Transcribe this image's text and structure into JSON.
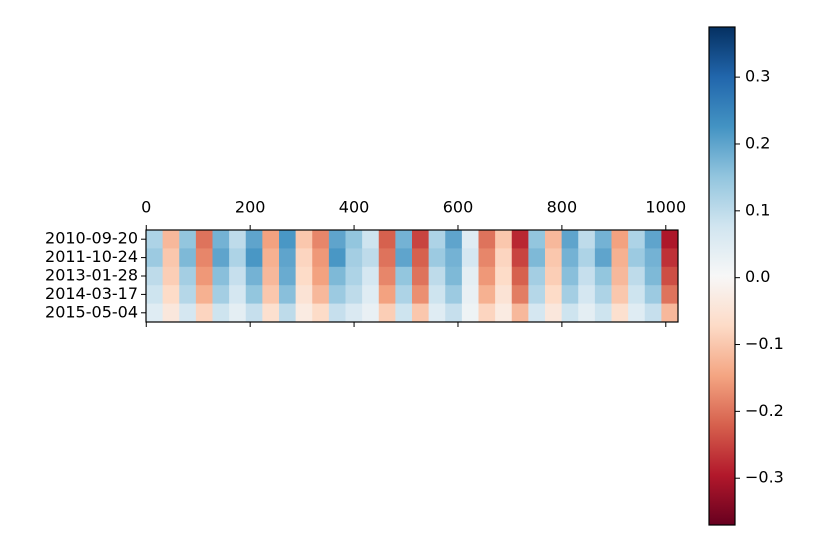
{
  "chart_data": {
    "type": "heatmap",
    "rows": [
      "2010-09-20",
      "2011-10-24",
      "2013-01-28",
      "2014-03-17",
      "2015-05-04"
    ],
    "values": [
      [
        0.12,
        -0.12,
        0.15,
        -0.2,
        0.18,
        0.1,
        0.2,
        -0.15,
        0.22,
        -0.1,
        -0.18,
        0.2,
        0.15,
        0.08,
        -0.22,
        0.18,
        -0.25,
        0.12,
        0.2,
        0.05,
        -0.2,
        -0.1,
        -0.28,
        0.15,
        -0.12,
        0.2,
        0.1,
        0.18,
        -0.15,
        0.12,
        0.2,
        -0.3
      ],
      [
        0.14,
        -0.1,
        0.17,
        -0.18,
        0.2,
        0.12,
        0.22,
        -0.13,
        0.2,
        -0.08,
        -0.16,
        0.22,
        0.13,
        0.1,
        -0.2,
        0.2,
        -0.22,
        0.14,
        0.18,
        0.07,
        -0.18,
        -0.08,
        -0.25,
        0.17,
        -0.1,
        0.18,
        0.12,
        0.2,
        -0.13,
        0.14,
        0.18,
        -0.27
      ],
      [
        0.1,
        -0.09,
        0.13,
        -0.16,
        0.16,
        0.09,
        0.18,
        -0.12,
        0.19,
        -0.07,
        -0.15,
        0.17,
        0.12,
        0.07,
        -0.18,
        0.15,
        -0.2,
        0.1,
        0.17,
        0.04,
        -0.16,
        -0.07,
        -0.22,
        0.13,
        -0.09,
        0.16,
        0.09,
        0.15,
        -0.12,
        0.1,
        0.17,
        -0.24
      ],
      [
        0.08,
        -0.07,
        0.11,
        -0.13,
        0.13,
        0.07,
        0.15,
        -0.1,
        0.16,
        -0.05,
        -0.12,
        0.14,
        0.1,
        0.05,
        -0.15,
        0.12,
        -0.17,
        0.08,
        0.14,
        0.03,
        -0.13,
        -0.05,
        -0.19,
        0.11,
        -0.07,
        0.13,
        0.07,
        0.12,
        -0.1,
        0.08,
        0.14,
        -0.2
      ],
      [
        0.05,
        -0.04,
        0.07,
        -0.08,
        0.08,
        0.04,
        0.09,
        -0.06,
        0.1,
        -0.03,
        -0.07,
        0.09,
        0.06,
        0.03,
        -0.09,
        0.08,
        -0.1,
        0.05,
        0.09,
        0.02,
        -0.08,
        -0.03,
        -0.12,
        0.07,
        -0.04,
        0.08,
        0.04,
        0.08,
        -0.06,
        0.05,
        0.09,
        -0.12
      ]
    ],
    "xlim": [
      -0.5,
      1023.5
    ],
    "xticks": [
      0,
      200,
      400,
      600,
      800,
      1000
    ],
    "colormap": "RdBu",
    "clim": [
      -0.37,
      0.375
    ],
    "cticks": [
      {
        "value": -0.3,
        "label": "−0.3"
      },
      {
        "value": -0.2,
        "label": "−0.2"
      },
      {
        "value": -0.1,
        "label": "−0.1"
      },
      {
        "value": 0,
        "label": "0.0"
      },
      0.1,
      0.2,
      0.3
    ]
  }
}
